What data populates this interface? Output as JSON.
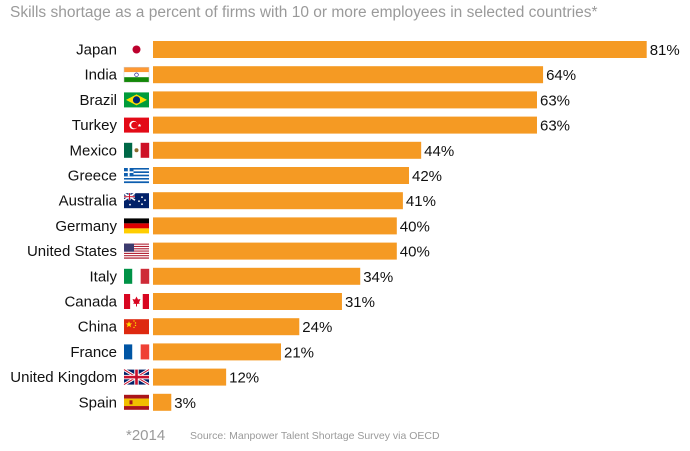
{
  "chart_data": {
    "type": "bar",
    "orientation": "horizontal",
    "title": "Skills shortage as a percent of firms with 10 or more employees in selected countries*",
    "categories": [
      "Japan",
      "India",
      "Brazil",
      "Turkey",
      "Mexico",
      "Greece",
      "Australia",
      "Germany",
      "United States",
      "Italy",
      "Canada",
      "China",
      "France",
      "United Kingdom",
      "Spain"
    ],
    "values": [
      81,
      64,
      63,
      63,
      44,
      42,
      41,
      40,
      40,
      34,
      31,
      24,
      21,
      12,
      3
    ],
    "value_labels": [
      "81%",
      "64%",
      "63%",
      "63%",
      "44%",
      "42%",
      "41%",
      "40%",
      "40%",
      "34%",
      "31%",
      "24%",
      "21%",
      "12%",
      "3%"
    ],
    "flags": [
      "japan-flag",
      "india-flag",
      "brazil-flag",
      "turkey-flag",
      "mexico-flag",
      "greece-flag",
      "australia-flag",
      "germany-flag",
      "united-states-flag",
      "italy-flag",
      "canada-flag",
      "china-flag",
      "france-flag",
      "united-kingdom-flag",
      "spain-flag"
    ],
    "xlim": [
      0,
      81
    ],
    "bar_color": "#f59a23",
    "footnote": "*2014",
    "source": "Source: Manpower Talent Shortage Survey via OECD",
    "grid": false,
    "legend": false
  }
}
